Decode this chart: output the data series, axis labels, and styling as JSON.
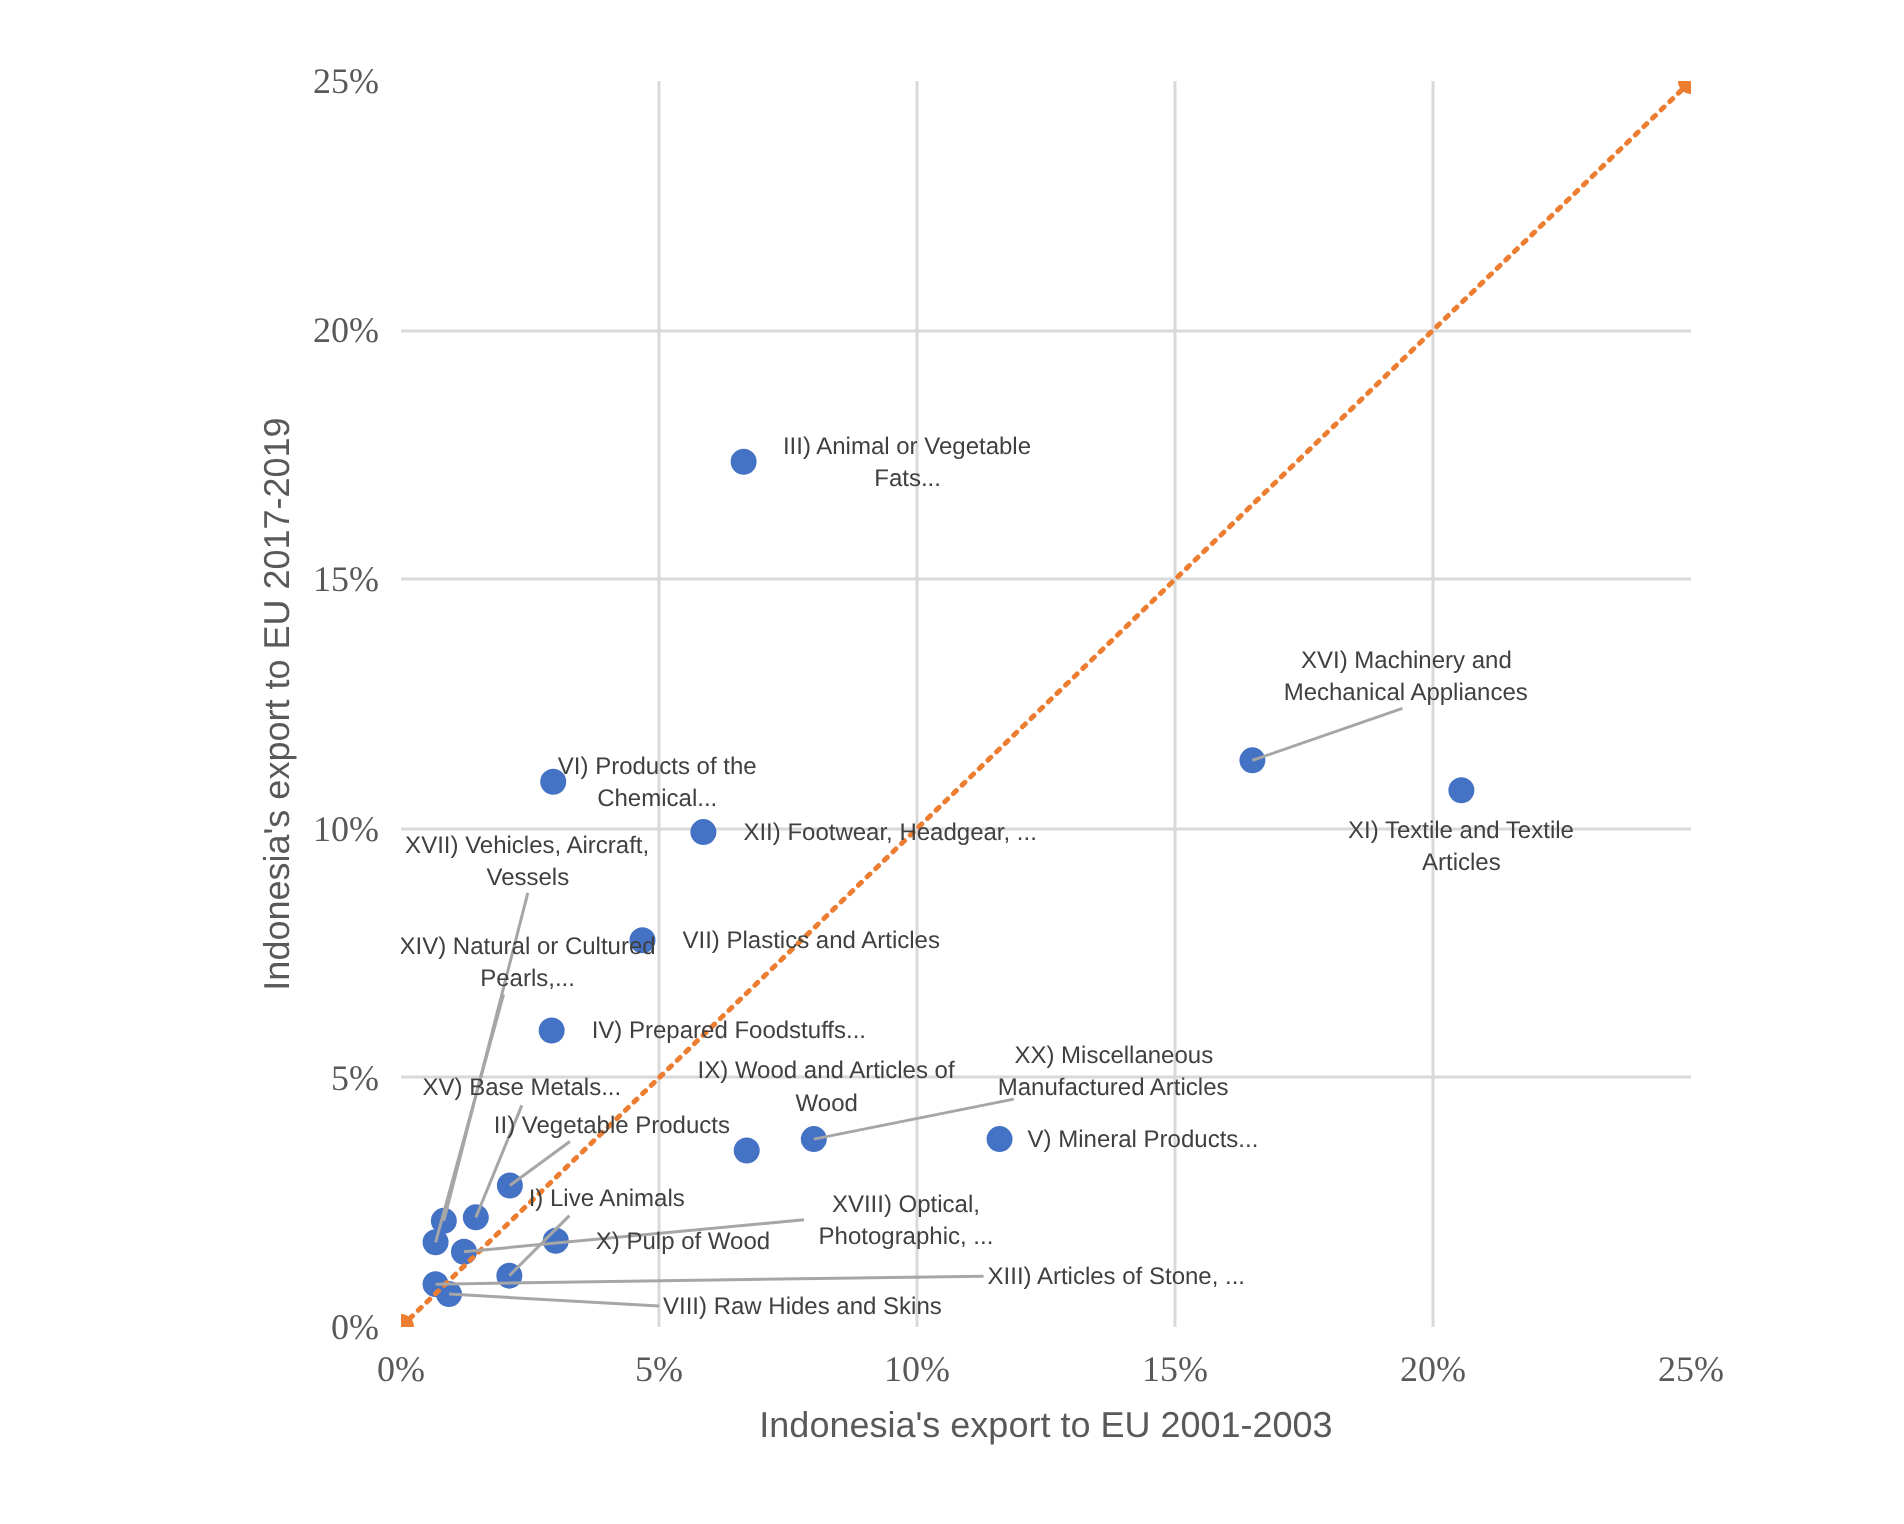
{
  "chart_data": {
    "type": "scatter",
    "xlabel": "Indonesia's export to EU 2001-2003",
    "ylabel": "Indonesia's export to EU 2017-2019",
    "xlim": [
      0,
      25
    ],
    "ylim": [
      0,
      25
    ],
    "xticks": [
      {
        "value": 0,
        "label": "0%"
      },
      {
        "value": 5,
        "label": "5%"
      },
      {
        "value": 10,
        "label": "10%"
      },
      {
        "value": 15,
        "label": "15%"
      },
      {
        "value": 20,
        "label": "20%"
      },
      {
        "value": 25,
        "label": "25%"
      }
    ],
    "yticks": [
      {
        "value": 0,
        "label": "0%"
      },
      {
        "value": 5,
        "label": "5%"
      },
      {
        "value": 10,
        "label": "10%"
      },
      {
        "value": 15,
        "label": "15%"
      },
      {
        "value": 20,
        "label": "20%"
      },
      {
        "value": 25,
        "label": "25%"
      }
    ],
    "grid": true,
    "marker": "circle",
    "series": [
      {
        "color": "#4472c4",
        "x": [
          6.64,
          2.95,
          5.86,
          4.68,
          2.92,
          16.5,
          20.55,
          0.83,
          0.67,
          1.45,
          2.11,
          2.1,
          3.0,
          1.22,
          0.67,
          0.93,
          6.7,
          8.0,
          11.6
        ],
        "values": [
          17.36,
          10.94,
          9.93,
          7.76,
          5.95,
          11.37,
          10.77,
          2.13,
          1.7,
          2.2,
          2.84,
          1.03,
          1.73,
          1.51,
          0.86,
          0.66,
          3.54,
          3.77,
          3.77
        ]
      },
      {
        "type": "line",
        "color": "#ed7d31",
        "x": [
          0,
          25
        ],
        "values": [
          0,
          25
        ],
        "line_style": "dotted",
        "marker": "circle"
      }
    ],
    "annotations": [
      {
        "text": "III) Animal or Vegetable\nFats...",
        "x": 6.64,
        "y": 17.36
      },
      {
        "text": "VI) Products of the\nChemical...",
        "x": 2.95,
        "y": 10.94
      },
      {
        "text": "XII) Footwear, Headgear, ...",
        "x": 5.86,
        "y": 9.93
      },
      {
        "text": "VII) Plastics and Articles",
        "x": 4.68,
        "y": 7.76
      },
      {
        "text": "IV) Prepared Foodstuffs...",
        "x": 2.92,
        "y": 5.95
      },
      {
        "text": "XVI) Machinery and\nMechanical Appliances",
        "x": 16.5,
        "y": 11.37
      },
      {
        "text": "XI) Textile and Textile\nArticles",
        "x": 20.55,
        "y": 10.77
      },
      {
        "text": "XVII) Vehicles, Aircraft,\nVessels",
        "x": 0.83,
        "y": 2.13
      },
      {
        "text": "XIV) Natural or Cultured\nPearls,...",
        "x": 0.67,
        "y": 1.7
      },
      {
        "text": "XV) Base Metals...",
        "x": 1.45,
        "y": 2.2
      },
      {
        "text": "II) Vegetable Products",
        "x": 2.11,
        "y": 2.84
      },
      {
        "text": "I) Live Animals",
        "x": 2.1,
        "y": 1.03
      },
      {
        "text": "X) Pulp of Wood",
        "x": 3.0,
        "y": 1.73
      },
      {
        "text": "XVIII) Optical,\nPhotographic, ...",
        "x": 1.22,
        "y": 1.51
      },
      {
        "text": "XIII) Articles of Stone, ...",
        "x": 0.67,
        "y": 0.86
      },
      {
        "text": "VIII) Raw Hides and Skins",
        "x": 0.93,
        "y": 0.66
      },
      {
        "text": "IX) Wood and Articles of\nWood",
        "x": 6.7,
        "y": 3.54
      },
      {
        "text": "XX) Miscellaneous\nManufactured Articles",
        "x": 8.0,
        "y": 3.77
      },
      {
        "text": "V) Mineral Products...",
        "x": 11.6,
        "y": 3.77
      }
    ]
  }
}
